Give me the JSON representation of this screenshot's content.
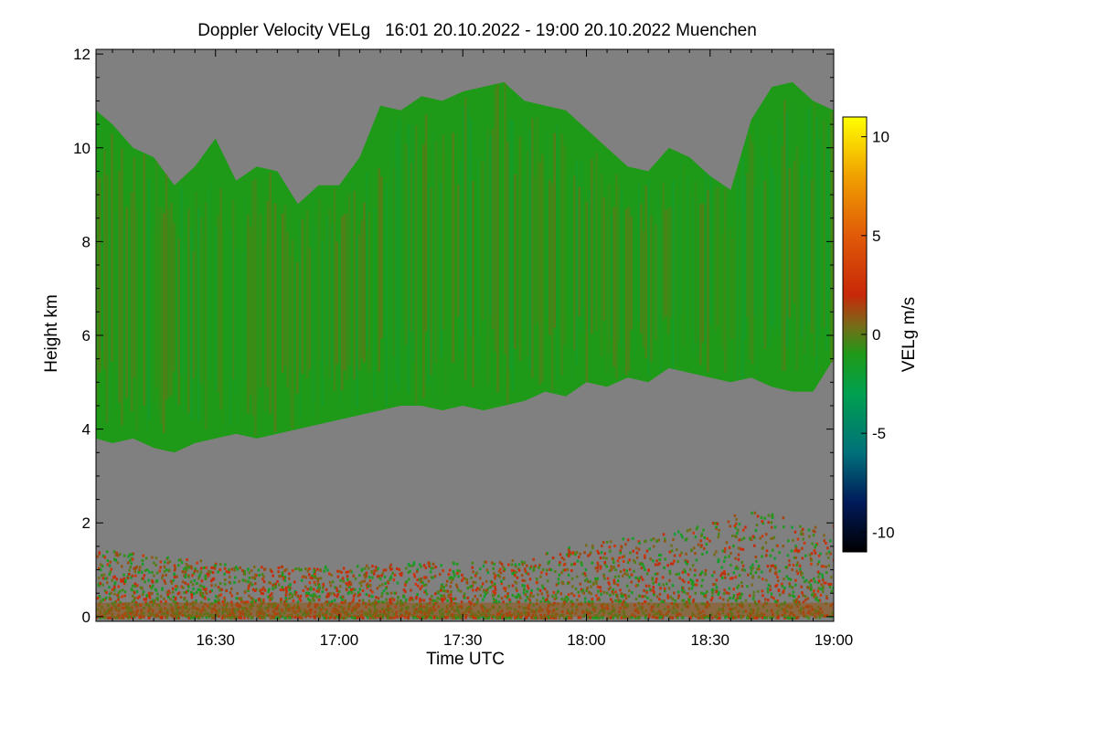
{
  "chart_data": {
    "type": "heatmap",
    "title": "Doppler Velocity VELg   16:01 20.10.2022 - 19:00 20.10.2022 Muenchen",
    "xlabel": "Time UTC",
    "ylabel": "Height km",
    "colorbar_label": "VELg m/s",
    "x_range_minutes_utc": [
      961,
      1140
    ],
    "y_range_km": [
      -0.1,
      12.1
    ],
    "x_ticks": [
      {
        "label": "16:30",
        "value": 990
      },
      {
        "label": "17:00",
        "value": 1020
      },
      {
        "label": "17:30",
        "value": 1050
      },
      {
        "label": "18:00",
        "value": 1080
      },
      {
        "label": "18:30",
        "value": 1110
      },
      {
        "label": "19:00",
        "value": 1140
      }
    ],
    "y_ticks": [
      {
        "label": "0",
        "value": 0
      },
      {
        "label": "2",
        "value": 2
      },
      {
        "label": "4",
        "value": 4
      },
      {
        "label": "6",
        "value": 6
      },
      {
        "label": "8",
        "value": 8
      },
      {
        "label": "10",
        "value": 10
      },
      {
        "label": "12",
        "value": 12
      }
    ],
    "colorbar_range": [
      -11,
      11
    ],
    "colorbar_ticks": [
      {
        "label": "10",
        "value": 10
      },
      {
        "label": "5",
        "value": 5
      },
      {
        "label": "0",
        "value": 0
      },
      {
        "label": "-5",
        "value": -5
      },
      {
        "label": "-10",
        "value": -10
      }
    ],
    "colorscale": [
      {
        "value": -11,
        "color": "#000000"
      },
      {
        "value": -8.5,
        "color": "#001a5a"
      },
      {
        "value": -6,
        "color": "#00707a"
      },
      {
        "value": -3,
        "color": "#00a050"
      },
      {
        "value": -1,
        "color": "#1f9a18"
      },
      {
        "value": 0.5,
        "color": "#7a6a18"
      },
      {
        "value": 2,
        "color": "#c82808"
      },
      {
        "value": 5,
        "color": "#e05a08"
      },
      {
        "value": 8,
        "color": "#f0a000"
      },
      {
        "value": 11,
        "color": "#ffff00"
      }
    ],
    "background_color": "#808080",
    "cloud_layer": {
      "dominant_velocity_ms": -1,
      "time": [
        961,
        965,
        970,
        975,
        980,
        985,
        990,
        995,
        1000,
        1005,
        1010,
        1015,
        1020,
        1025,
        1030,
        1035,
        1040,
        1045,
        1050,
        1055,
        1060,
        1065,
        1070,
        1075,
        1080,
        1085,
        1090,
        1095,
        1100,
        1105,
        1110,
        1115,
        1120,
        1125,
        1130,
        1135,
        1140
      ],
      "base_km": [
        3.8,
        3.7,
        3.8,
        3.6,
        3.5,
        3.7,
        3.8,
        3.9,
        3.8,
        3.9,
        4.0,
        4.1,
        4.2,
        4.3,
        4.4,
        4.5,
        4.5,
        4.4,
        4.5,
        4.4,
        4.5,
        4.6,
        4.8,
        4.7,
        5.0,
        4.9,
        5.1,
        5.0,
        5.3,
        5.2,
        5.1,
        5.0,
        5.1,
        4.9,
        4.8,
        4.8,
        5.5
      ],
      "top_km": [
        10.8,
        10.5,
        10.0,
        9.8,
        9.2,
        9.6,
        10.2,
        9.3,
        9.6,
        9.5,
        8.8,
        9.2,
        9.2,
        9.8,
        10.9,
        10.8,
        11.1,
        11.0,
        11.2,
        11.3,
        11.4,
        11.0,
        10.9,
        10.8,
        10.4,
        10.0,
        9.6,
        9.5,
        10.0,
        9.8,
        9.4,
        9.1,
        10.6,
        11.3,
        11.4,
        11.0,
        10.8
      ]
    },
    "boundary_layer": {
      "velocity_range_ms": [
        -2,
        3
      ],
      "time": [
        961,
        980,
        1000,
        1020,
        1040,
        1060,
        1080,
        1095,
        1105,
        1115,
        1125,
        1130,
        1140
      ],
      "top_km": [
        1.5,
        1.3,
        1.1,
        1.1,
        1.2,
        1.2,
        1.6,
        1.8,
        1.9,
        2.2,
        2.3,
        2.0,
        2.0
      ]
    }
  }
}
